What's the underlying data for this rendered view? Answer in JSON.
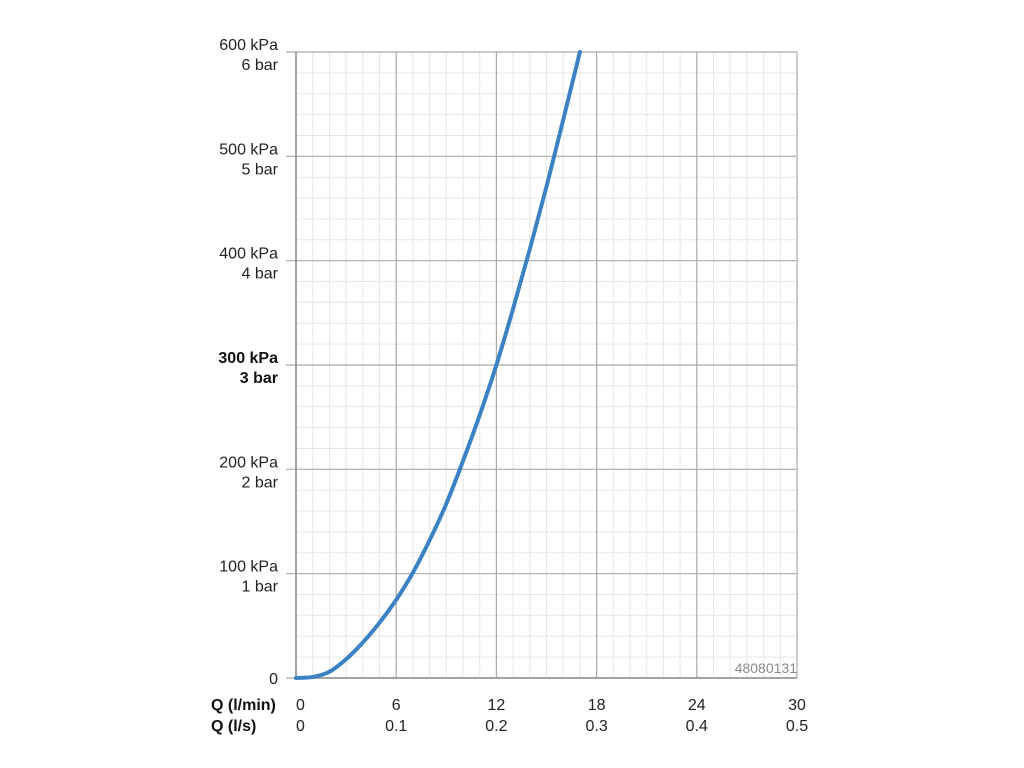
{
  "chart_data": {
    "type": "line",
    "title": "",
    "xlim": [
      0,
      30
    ],
    "ylim": [
      0,
      600
    ],
    "grid": true,
    "curve_color": "#3b82c4",
    "series": [
      {
        "x": [
          0,
          1,
          2,
          3,
          4,
          5,
          6,
          7,
          8,
          9,
          10,
          11,
          12,
          13,
          14,
          15,
          16,
          17
        ],
        "y": [
          0,
          1,
          6,
          18,
          34,
          53,
          75,
          101,
          132,
          167,
          208,
          252,
          300,
          354,
          411,
          471,
          535,
          600
        ]
      }
    ],
    "y_ticks": [
      {
        "value": 600,
        "line1": "600 kPa",
        "line2": "6 bar",
        "bold": false
      },
      {
        "value": 500,
        "line1": "500 kPa",
        "line2": "5 bar",
        "bold": false
      },
      {
        "value": 400,
        "line1": "400 kPa",
        "line2": "4 bar",
        "bold": false
      },
      {
        "value": 300,
        "line1": "300 kPa",
        "line2": "3 bar",
        "bold": true
      },
      {
        "value": 200,
        "line1": "200 kPa",
        "line2": "2 bar",
        "bold": false
      },
      {
        "value": 100,
        "line1": "100 kPa",
        "line2": "1 bar",
        "bold": false
      },
      {
        "value": 0,
        "line1": "0",
        "line2": "",
        "bold": false
      }
    ],
    "x_ticks": [
      {
        "value": 0,
        "lpm": "0",
        "lps": "0"
      },
      {
        "value": 6,
        "lpm": "6",
        "lps": "0.1"
      },
      {
        "value": 12,
        "lpm": "12",
        "lps": "0.2"
      },
      {
        "value": 18,
        "lpm": "18",
        "lps": "0.3"
      },
      {
        "value": 24,
        "lpm": "24",
        "lps": "0.4"
      },
      {
        "value": 30,
        "lpm": "30",
        "lps": "0.5"
      }
    ],
    "x_row_labels": {
      "lpm": "Q (l/min)",
      "lps": "Q (l/s)"
    },
    "watermark": "48080131"
  }
}
